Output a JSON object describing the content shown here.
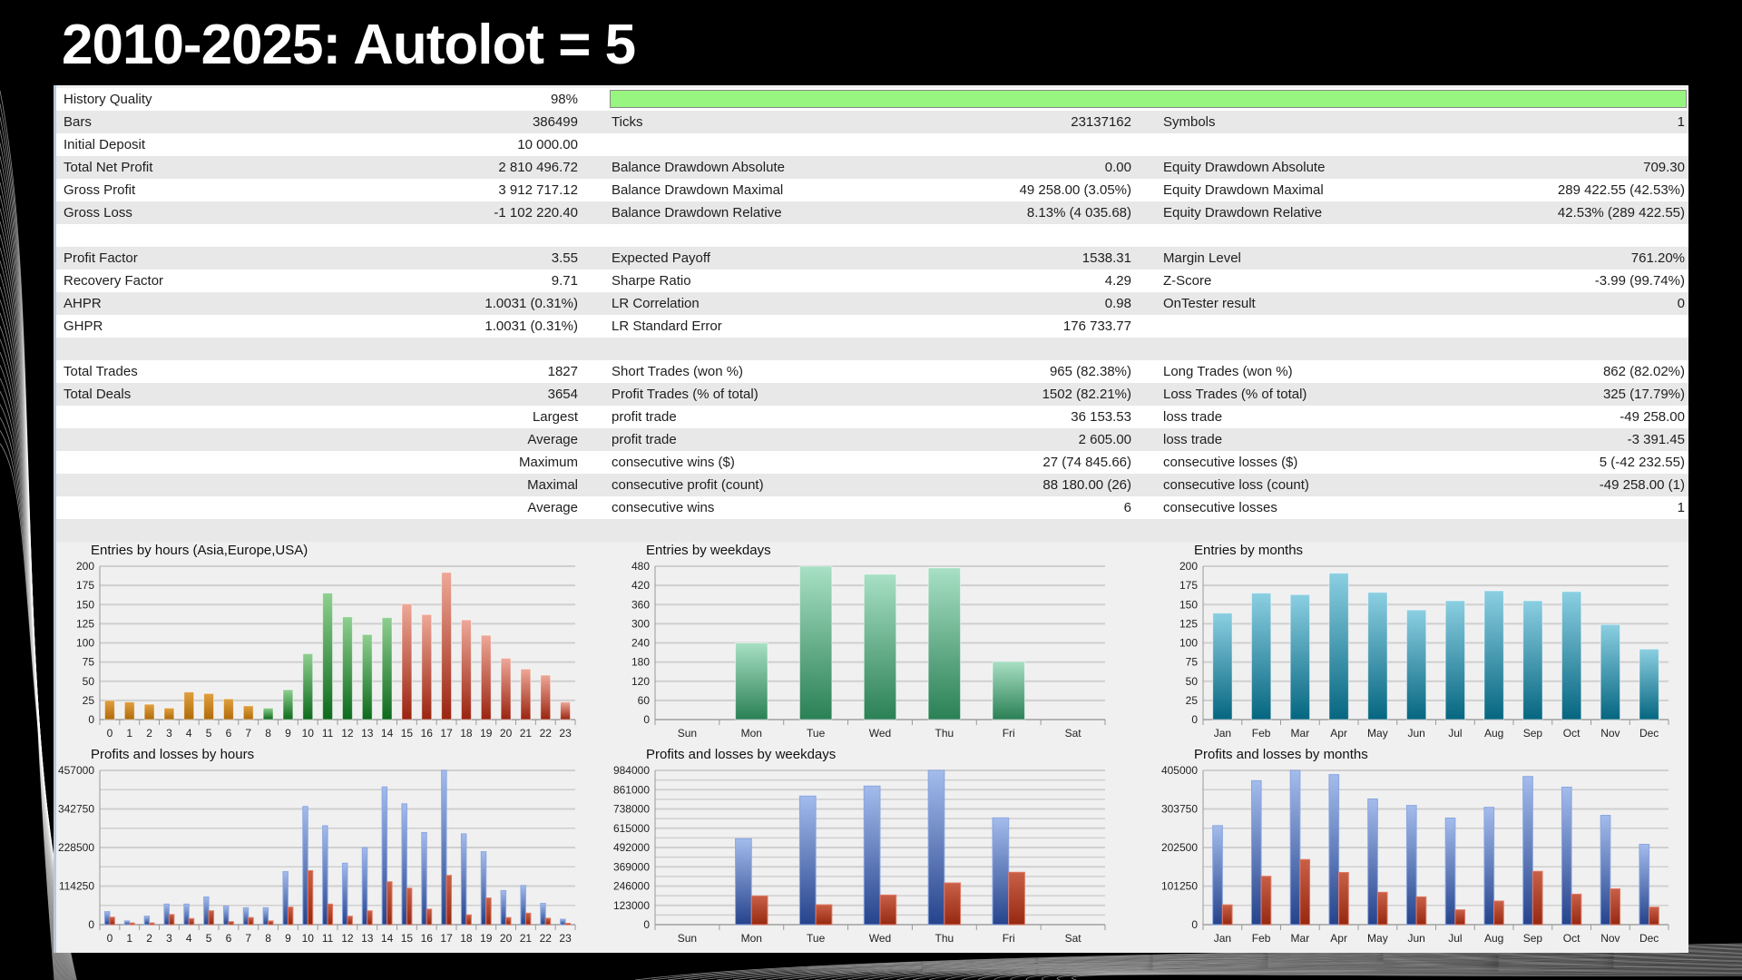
{
  "title": "2010-2025: Autolot = 5",
  "history_quality_fill_percent": 98,
  "rows": [
    {
      "cells": [
        [
          "History Quality",
          "98%"
        ]
      ],
      "quality_bar": true
    },
    {
      "cells": [
        [
          "Bars",
          "386499"
        ],
        [
          "Ticks",
          "23137162"
        ],
        [
          "Symbols",
          "1"
        ]
      ]
    },
    {
      "cells": [
        [
          "Initial Deposit",
          "10 000.00"
        ]
      ]
    },
    {
      "cells": [
        [
          "Total Net Profit",
          "2 810 496.72"
        ],
        [
          "Balance Drawdown Absolute",
          "0.00"
        ],
        [
          "Equity Drawdown Absolute",
          "709.30"
        ]
      ]
    },
    {
      "cells": [
        [
          "Gross Profit",
          "3 912 717.12"
        ],
        [
          "Balance Drawdown Maximal",
          "49 258.00 (3.05%)"
        ],
        [
          "Equity Drawdown Maximal",
          "289 422.55 (42.53%)"
        ]
      ]
    },
    {
      "cells": [
        [
          "Gross Loss",
          "-1 102 220.40"
        ],
        [
          "Balance Drawdown Relative",
          "8.13% (4 035.68)"
        ],
        [
          "Equity Drawdown Relative",
          "42.53% (289 422.55)"
        ]
      ]
    },
    {
      "cells": []
    },
    {
      "cells": [
        [
          "Profit Factor",
          "3.55"
        ],
        [
          "Expected Payoff",
          "1538.31"
        ],
        [
          "Margin Level",
          "761.20%"
        ]
      ]
    },
    {
      "cells": [
        [
          "Recovery Factor",
          "9.71"
        ],
        [
          "Sharpe Ratio",
          "4.29"
        ],
        [
          "Z-Score",
          "-3.99 (99.74%)"
        ]
      ]
    },
    {
      "cells": [
        [
          "AHPR",
          "1.0031 (0.31%)"
        ],
        [
          "LR Correlation",
          "0.98"
        ],
        [
          "OnTester result",
          "0"
        ]
      ]
    },
    {
      "cells": [
        [
          "GHPR",
          "1.0031 (0.31%)"
        ],
        [
          "LR Standard Error",
          "176 733.77"
        ]
      ]
    },
    {
      "cells": []
    },
    {
      "cells": [
        [
          "Total Trades",
          "1827"
        ],
        [
          "Short Trades (won %)",
          "965 (82.38%)"
        ],
        [
          "Long Trades (won %)",
          "862 (82.02%)"
        ]
      ]
    },
    {
      "cells": [
        [
          "Total Deals",
          "3654"
        ],
        [
          "Profit Trades (% of total)",
          "1502 (82.21%)"
        ],
        [
          "Loss Trades (% of total)",
          "325 (17.79%)"
        ]
      ]
    },
    {
      "cells": [
        [
          "",
          "Largest"
        ],
        [
          "profit trade",
          "36 153.53"
        ],
        [
          "loss trade",
          "-49 258.00"
        ]
      ]
    },
    {
      "cells": [
        [
          "",
          "Average"
        ],
        [
          "profit trade",
          "2 605.00"
        ],
        [
          "loss trade",
          "-3 391.45"
        ]
      ]
    },
    {
      "cells": [
        [
          "",
          "Maximum"
        ],
        [
          "consecutive wins ($)",
          "27 (74 845.66)"
        ],
        [
          "consecutive losses ($)",
          "5 (-42 232.55)"
        ]
      ]
    },
    {
      "cells": [
        [
          "",
          "Maximal"
        ],
        [
          "consecutive profit (count)",
          "88 180.00 (26)"
        ],
        [
          "consecutive loss (count)",
          "-49 258.00 (1)"
        ]
      ]
    },
    {
      "cells": [
        [
          "",
          "Average"
        ],
        [
          "consecutive wins",
          "6"
        ],
        [
          "consecutive losses",
          "1"
        ]
      ]
    },
    {
      "cells": []
    }
  ],
  "colors": {
    "quality_bar": "#98f57f",
    "profit": "#3a5aa8",
    "loss": "#a83018",
    "asia": "#c07a10",
    "europe": "#1f7f30",
    "usa": "#b84030",
    "weekday": "#2e8b5a",
    "month": "#1a7f9c"
  },
  "chart_data": [
    {
      "type": "bar",
      "title": "Entries by hours (Asia,Europe,USA)",
      "categories": [
        "0",
        "1",
        "2",
        "3",
        "4",
        "5",
        "6",
        "7",
        "8",
        "9",
        "10",
        "11",
        "12",
        "13",
        "14",
        "15",
        "16",
        "17",
        "18",
        "19",
        "20",
        "21",
        "22",
        "23"
      ],
      "values": [
        25,
        23,
        20,
        15,
        36,
        34,
        27,
        18,
        15,
        39,
        86,
        165,
        134,
        111,
        133,
        151,
        137,
        192,
        130,
        110,
        80,
        66,
        58,
        23
      ],
      "sessions": [
        "asia",
        "asia",
        "asia",
        "asia",
        "asia",
        "asia",
        "asia",
        "asia",
        "europe",
        "europe",
        "europe",
        "europe",
        "europe",
        "europe",
        "europe",
        "usa",
        "usa",
        "usa",
        "usa",
        "usa",
        "usa",
        "usa",
        "usa",
        "usa"
      ],
      "yticks": [
        "0",
        "25",
        "50",
        "75",
        "100",
        "125",
        "150",
        "175",
        "200"
      ],
      "ylim": [
        0,
        200
      ]
    },
    {
      "type": "bar",
      "title": "Entries by weekdays",
      "categories": [
        "Sun",
        "Mon",
        "Tue",
        "Wed",
        "Thu",
        "Fri",
        "Sat"
      ],
      "values": [
        0,
        240,
        480,
        455,
        475,
        182,
        0
      ],
      "yticks": [
        "0",
        "60",
        "120",
        "180",
        "240",
        "300",
        "360",
        "420",
        "480"
      ],
      "ylim": [
        0,
        480
      ]
    },
    {
      "type": "bar",
      "title": "Entries by months",
      "categories": [
        "Jan",
        "Feb",
        "Mar",
        "Apr",
        "May",
        "Jun",
        "Jul",
        "Aug",
        "Sep",
        "Oct",
        "Nov",
        "Dec"
      ],
      "values": [
        139,
        165,
        163,
        191,
        166,
        143,
        155,
        168,
        155,
        167,
        124,
        92
      ],
      "yticks": [
        "0",
        "25",
        "50",
        "75",
        "100",
        "125",
        "150",
        "175",
        "200"
      ],
      "ylim": [
        0,
        200
      ]
    },
    {
      "type": "bar",
      "title": "Profits and losses by hours",
      "categories": [
        "0",
        "1",
        "2",
        "3",
        "4",
        "5",
        "6",
        "7",
        "8",
        "9",
        "10",
        "11",
        "12",
        "13",
        "14",
        "15",
        "16",
        "17",
        "18",
        "19",
        "20",
        "21",
        "22",
        "23"
      ],
      "series": [
        {
          "name": "Profits",
          "values": [
            38500,
            11000,
            25000,
            61000,
            61000,
            82000,
            55000,
            50000,
            50000,
            157000,
            350000,
            293000,
            182000,
            228000,
            408000,
            358000,
            273000,
            457000,
            269000,
            216000,
            101000,
            116000,
            63000,
            16000
          ]
        },
        {
          "name": "Losses",
          "values": [
            22000,
            5000,
            5000,
            30000,
            18000,
            41000,
            9000,
            21000,
            11000,
            52000,
            160000,
            61000,
            25000,
            41000,
            127000,
            108000,
            46000,
            146000,
            29000,
            79000,
            21000,
            34000,
            19000,
            4000
          ]
        }
      ],
      "yticks": [
        "0",
        "114250",
        "228500",
        "342750",
        "457000"
      ],
      "ylim": [
        0,
        457000
      ]
    },
    {
      "type": "bar",
      "title": "Profits and losses by weekdays",
      "categories": [
        "Sun",
        "Mon",
        "Tue",
        "Wed",
        "Thu",
        "Fri",
        "Sat"
      ],
      "series": [
        {
          "name": "Profits",
          "values": [
            0,
            548000,
            820000,
            884000,
            984000,
            681000,
            0
          ]
        },
        {
          "name": "Losses",
          "values": [
            0,
            183000,
            127000,
            189000,
            266000,
            334000,
            0
          ]
        }
      ],
      "yticks": [
        "0",
        "123000",
        "246000",
        "369000",
        "492000",
        "615000",
        "738000",
        "861000",
        "984000"
      ],
      "ylim": [
        0,
        984000
      ]
    },
    {
      "type": "bar",
      "title": "Profits and losses by months",
      "categories": [
        "Jan",
        "Feb",
        "Mar",
        "Apr",
        "May",
        "Jun",
        "Jul",
        "Aug",
        "Sep",
        "Oct",
        "Nov",
        "Dec"
      ],
      "series": [
        {
          "name": "Profits",
          "values": [
            260000,
            378000,
            405000,
            394000,
            330000,
            313000,
            280000,
            308000,
            389000,
            361000,
            287000,
            211000
          ]
        },
        {
          "name": "Losses",
          "values": [
            52000,
            127000,
            171000,
            137000,
            85000,
            73000,
            39000,
            62000,
            140000,
            80000,
            94000,
            46000
          ]
        }
      ],
      "yticks": [
        "0",
        "101250",
        "202500",
        "303750",
        "405000"
      ],
      "ylim": [
        0,
        405000
      ]
    }
  ]
}
